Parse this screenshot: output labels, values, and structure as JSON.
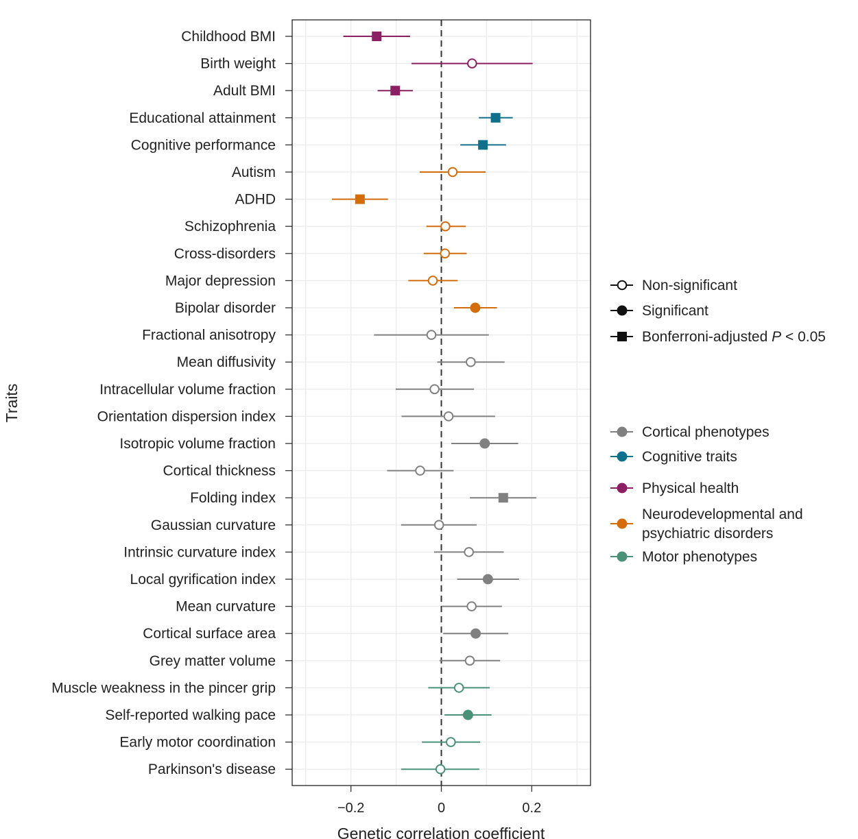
{
  "chart_data": {
    "type": "forest",
    "title": "",
    "xlabel": "Genetic correlation coefficient",
    "ylabel": "Traits",
    "xlim": [
      -0.33,
      0.33
    ],
    "xticks": [
      -0.2,
      0,
      0.2
    ],
    "xtick_labels": [
      "−0.2",
      "0",
      "0.2"
    ],
    "reference_line": 0,
    "grid": true,
    "groups": [
      {
        "key": "cortical",
        "name": "Cortical phenotypes",
        "color": "#808080"
      },
      {
        "key": "cognitive",
        "name": "Cognitive traits",
        "color": "#10708c"
      },
      {
        "key": "physical",
        "name": "Physical health",
        "color": "#8c1f63"
      },
      {
        "key": "neuro",
        "name": "Neurodevelopmental and psychiatric disorders",
        "name_lines": [
          "Neurodevelopmental and",
          "psychiatric disorders"
        ],
        "color": "#d36d0c"
      },
      {
        "key": "motor",
        "name": "Motor phenotypes",
        "color": "#4a9178"
      }
    ],
    "significance_legend": [
      {
        "key": "ns",
        "label": "Non-significant"
      },
      {
        "key": "sig",
        "label": "Significant"
      },
      {
        "key": "bonf",
        "label_prefix": "Bonferroni-adjusted ",
        "label_italic": "P",
        "label_suffix": " < 0.05"
      }
    ],
    "traits": [
      {
        "label": "Childhood BMI",
        "group": "physical",
        "estimate": -0.143,
        "lower": -0.217,
        "upper": -0.069,
        "sig": "bonf"
      },
      {
        "label": "Birth weight",
        "group": "physical",
        "estimate": 0.068,
        "lower": -0.066,
        "upper": 0.202,
        "sig": "ns"
      },
      {
        "label": "Adult BMI",
        "group": "physical",
        "estimate": -0.102,
        "lower": -0.141,
        "upper": -0.063,
        "sig": "bonf"
      },
      {
        "label": "Educational attainment",
        "group": "cognitive",
        "estimate": 0.12,
        "lower": 0.083,
        "upper": 0.158,
        "sig": "bonf"
      },
      {
        "label": "Cognitive performance",
        "group": "cognitive",
        "estimate": 0.092,
        "lower": 0.042,
        "upper": 0.143,
        "sig": "bonf"
      },
      {
        "label": "Autism",
        "group": "neuro",
        "estimate": 0.025,
        "lower": -0.048,
        "upper": 0.098,
        "sig": "ns"
      },
      {
        "label": "ADHD",
        "group": "neuro",
        "estimate": -0.18,
        "lower": -0.242,
        "upper": -0.118,
        "sig": "bonf"
      },
      {
        "label": "Schizophrenia",
        "group": "neuro",
        "estimate": 0.009,
        "lower": -0.033,
        "upper": 0.054,
        "sig": "ns"
      },
      {
        "label": "Cross-disorders",
        "group": "neuro",
        "estimate": 0.008,
        "lower": -0.039,
        "upper": 0.056,
        "sig": "ns"
      },
      {
        "label": "Major depression",
        "group": "neuro",
        "estimate": -0.019,
        "lower": -0.073,
        "upper": 0.036,
        "sig": "ns"
      },
      {
        "label": "Bipolar disorder",
        "group": "neuro",
        "estimate": 0.075,
        "lower": 0.028,
        "upper": 0.123,
        "sig": "sig"
      },
      {
        "label": "Fractional anisotropy",
        "group": "cortical",
        "estimate": -0.022,
        "lower": -0.149,
        "upper": 0.105,
        "sig": "ns"
      },
      {
        "label": "Mean diffusivity",
        "group": "cortical",
        "estimate": 0.065,
        "lower": -0.009,
        "upper": 0.14,
        "sig": "ns"
      },
      {
        "label": "Intracellular volume fraction",
        "group": "cortical",
        "estimate": -0.015,
        "lower": -0.101,
        "upper": 0.072,
        "sig": "ns"
      },
      {
        "label": "Orientation dispersion index",
        "group": "cortical",
        "estimate": 0.016,
        "lower": -0.088,
        "upper": 0.119,
        "sig": "ns"
      },
      {
        "label": "Isotropic volume fraction",
        "group": "cortical",
        "estimate": 0.096,
        "lower": 0.022,
        "upper": 0.17,
        "sig": "sig"
      },
      {
        "label": "Cortical thickness",
        "group": "cortical",
        "estimate": -0.047,
        "lower": -0.12,
        "upper": 0.027,
        "sig": "ns"
      },
      {
        "label": "Folding index",
        "group": "cortical",
        "estimate": 0.137,
        "lower": 0.063,
        "upper": 0.21,
        "sig": "bonf"
      },
      {
        "label": "Gaussian curvature",
        "group": "cortical",
        "estimate": -0.005,
        "lower": -0.089,
        "upper": 0.078,
        "sig": "ns"
      },
      {
        "label": "Intrinsic curvature index",
        "group": "cortical",
        "estimate": 0.061,
        "lower": -0.016,
        "upper": 0.138,
        "sig": "ns"
      },
      {
        "label": "Local gyrification index",
        "group": "cortical",
        "estimate": 0.103,
        "lower": 0.035,
        "upper": 0.172,
        "sig": "sig"
      },
      {
        "label": "Mean curvature",
        "group": "cortical",
        "estimate": 0.067,
        "lower": 0.001,
        "upper": 0.134,
        "sig": "ns"
      },
      {
        "label": "Cortical surface area",
        "group": "cortical",
        "estimate": 0.076,
        "lower": 0.004,
        "upper": 0.148,
        "sig": "sig"
      },
      {
        "label": "Grey matter volume",
        "group": "cortical",
        "estimate": 0.063,
        "lower": -0.004,
        "upper": 0.13,
        "sig": "ns"
      },
      {
        "label": "Muscle weakness in the pincer grip",
        "group": "motor",
        "estimate": 0.039,
        "lower": -0.029,
        "upper": 0.107,
        "sig": "ns"
      },
      {
        "label": "Self-reported walking pace",
        "group": "motor",
        "estimate": 0.059,
        "lower": 0.007,
        "upper": 0.111,
        "sig": "sig"
      },
      {
        "label": "Early motor coordination",
        "group": "motor",
        "estimate": 0.021,
        "lower": -0.043,
        "upper": 0.086,
        "sig": "ns"
      },
      {
        "label": "Parkinson's disease",
        "group": "motor",
        "estimate": -0.002,
        "lower": -0.089,
        "upper": 0.084,
        "sig": "ns"
      }
    ]
  }
}
